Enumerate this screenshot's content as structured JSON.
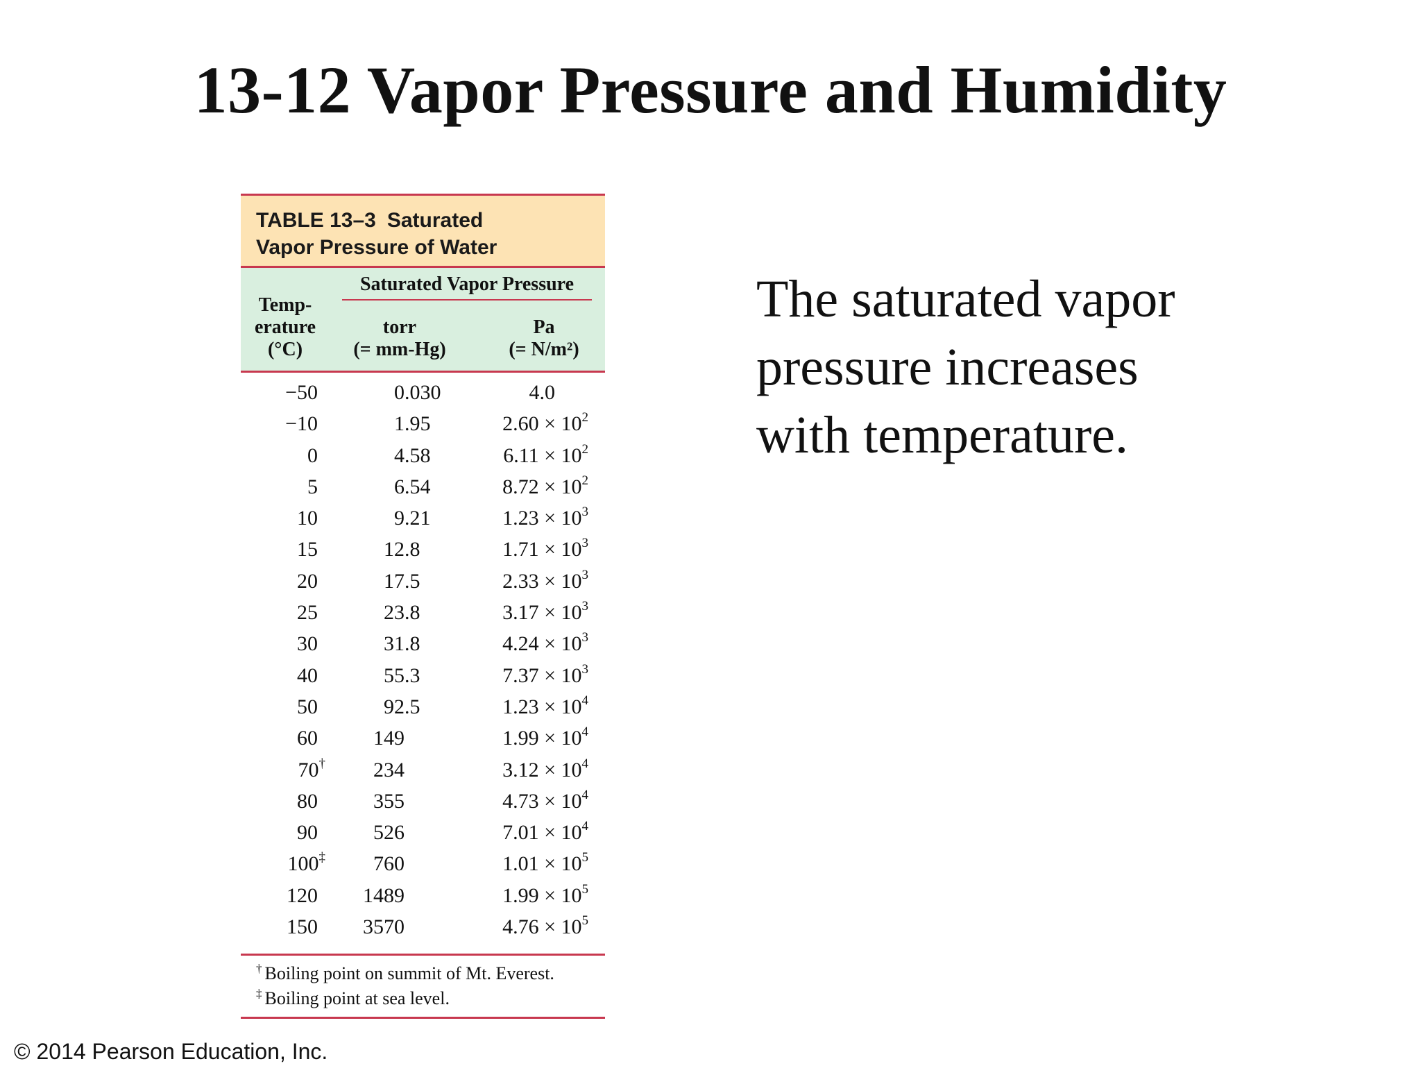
{
  "title": "13-12 Vapor Pressure and Humidity",
  "table": {
    "label": "TABLE 13–3",
    "caption_line1_tail": "Saturated",
    "caption_line2": "Vapor Pressure of Water",
    "col_temp_header": [
      "Temp-",
      "erature",
      "(°C)"
    ],
    "group_header": "Saturated Vapor Pressure",
    "col_torr_header": [
      "torr",
      "(= mm-Hg)"
    ],
    "col_pa_header": [
      "Pa",
      "(= N/m²)"
    ],
    "rows": [
      {
        "temp": "−50",
        "temp_mark": "",
        "torr": "0.030",
        "pa": "4.0",
        "pa_exp": ""
      },
      {
        "temp": "−10",
        "temp_mark": "",
        "torr": "1.95",
        "pa": "2.60 × 10",
        "pa_exp": "2"
      },
      {
        "temp": "0",
        "temp_mark": "",
        "torr": "4.58",
        "pa": "6.11 × 10",
        "pa_exp": "2"
      },
      {
        "temp": "5",
        "temp_mark": "",
        "torr": "6.54",
        "pa": "8.72 × 10",
        "pa_exp": "2"
      },
      {
        "temp": "10",
        "temp_mark": "",
        "torr": "9.21",
        "pa": "1.23 × 10",
        "pa_exp": "3"
      },
      {
        "temp": "15",
        "temp_mark": "",
        "torr": "12.8",
        "pa": "1.71 × 10",
        "pa_exp": "3"
      },
      {
        "temp": "20",
        "temp_mark": "",
        "torr": "17.5",
        "pa": "2.33 × 10",
        "pa_exp": "3"
      },
      {
        "temp": "25",
        "temp_mark": "",
        "torr": "23.8",
        "pa": "3.17 × 10",
        "pa_exp": "3"
      },
      {
        "temp": "30",
        "temp_mark": "",
        "torr": "31.8",
        "pa": "4.24 × 10",
        "pa_exp": "3"
      },
      {
        "temp": "40",
        "temp_mark": "",
        "torr": "55.3",
        "pa": "7.37 × 10",
        "pa_exp": "3"
      },
      {
        "temp": "50",
        "temp_mark": "",
        "torr": "92.5",
        "pa": "1.23 × 10",
        "pa_exp": "4"
      },
      {
        "temp": "60",
        "temp_mark": "",
        "torr": "149",
        "pa": "1.99 × 10",
        "pa_exp": "4"
      },
      {
        "temp": "70",
        "temp_mark": "†",
        "torr": "234",
        "pa": "3.12 × 10",
        "pa_exp": "4"
      },
      {
        "temp": "80",
        "temp_mark": "",
        "torr": "355",
        "pa": "4.73 × 10",
        "pa_exp": "4"
      },
      {
        "temp": "90",
        "temp_mark": "",
        "torr": "526",
        "pa": "7.01 × 10",
        "pa_exp": "4"
      },
      {
        "temp": "100",
        "temp_mark": "‡",
        "torr": "760",
        "pa": "1.01 × 10",
        "pa_exp": "5"
      },
      {
        "temp": "120",
        "temp_mark": "",
        "torr": "1489",
        "pa": "1.99 × 10",
        "pa_exp": "5"
      },
      {
        "temp": "150",
        "temp_mark": "",
        "torr": "3570",
        "pa": "4.76 × 10",
        "pa_exp": "5"
      }
    ],
    "footnotes": [
      {
        "mark": "†",
        "text": "Boiling point on summit of Mt. Everest."
      },
      {
        "mark": "‡",
        "text": "Boiling point at sea level."
      }
    ]
  },
  "side_text": [
    "The saturated vapor",
    "pressure increases",
    "with temperature."
  ],
  "copyright": "© 2014 Pearson Education, Inc.",
  "colors": {
    "caption_band": "#fde3b4",
    "header_band": "#d9efdf",
    "rule": "#c8384f"
  }
}
